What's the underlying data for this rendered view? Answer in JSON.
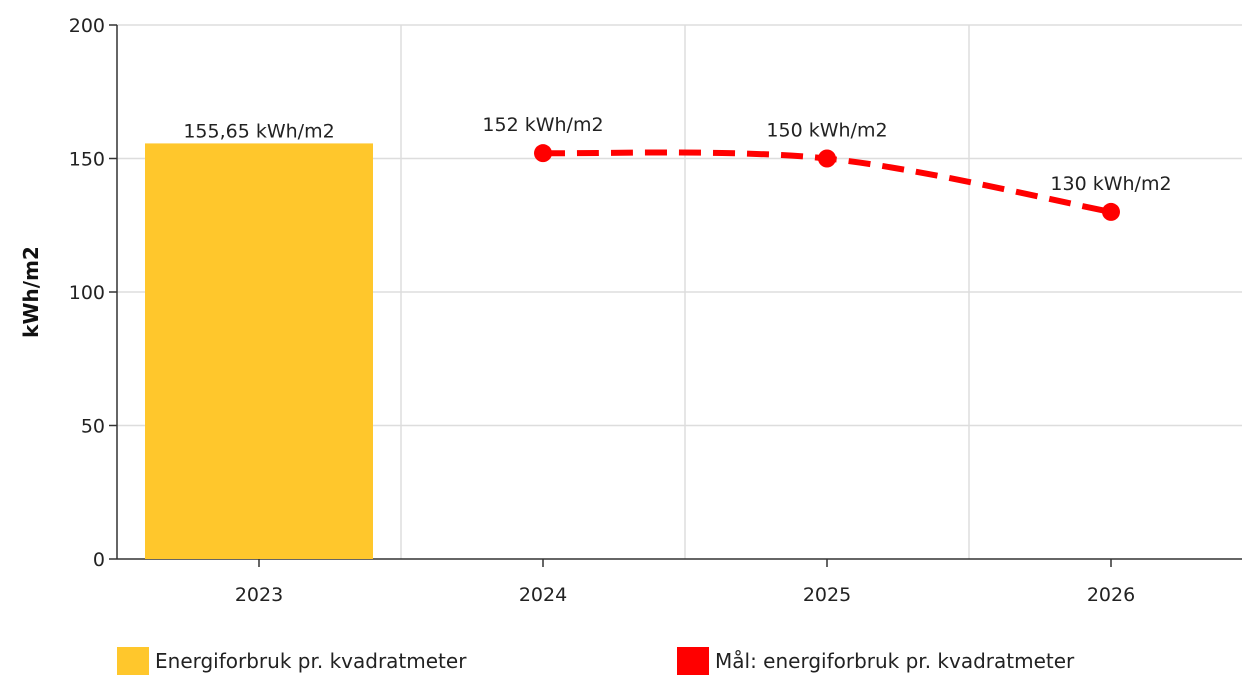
{
  "chart_data": {
    "type": "bar",
    "categories": [
      "2023",
      "2024",
      "2025",
      "2026"
    ],
    "ylabel": "kWh/m2",
    "xlabel": "",
    "ylim": [
      0,
      200
    ],
    "yticks": [
      0,
      50,
      100,
      150,
      200
    ],
    "grid": true,
    "legend_position": "bottom",
    "series": [
      {
        "name": "Energiforbruk pr. kvadratmeter",
        "kind": "bar",
        "color": "#FFC72C",
        "values": [
          155.65,
          null,
          null,
          null
        ],
        "labels": [
          "155,65 kWh/m2",
          "",
          "",
          ""
        ]
      },
      {
        "name": "Mål: energiforbruk pr. kvadratmeter",
        "kind": "line",
        "style": "dashed",
        "color": "#FF0000",
        "values": [
          null,
          152,
          150,
          130
        ],
        "labels": [
          "",
          "152 kWh/m2",
          "150 kWh/m2",
          "130 kWh/m2"
        ]
      }
    ]
  }
}
